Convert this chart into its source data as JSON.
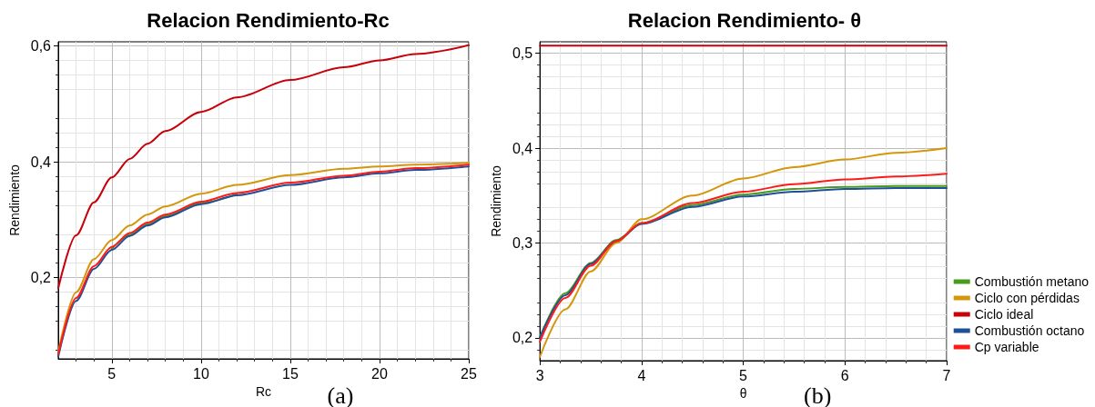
{
  "chart_data": [
    {
      "type": "line",
      "title": "Relacion Rendimiento-Rc",
      "xlabel": "Rc",
      "ylabel": "Rendimiento",
      "annotations": [
        "(a)"
      ],
      "x": [
        2,
        3,
        4,
        5,
        6,
        7,
        8,
        10,
        12,
        15,
        18,
        20,
        22,
        25
      ],
      "series": [
        {
          "color": "#c8000a",
          "values": [
            0.182,
            0.273,
            0.33,
            0.373,
            0.405,
            0.431,
            0.453,
            0.486,
            0.511,
            0.541,
            0.563,
            0.575,
            0.586,
            0.601
          ]
        },
        {
          "color": "#d4960a",
          "values": [
            0.072,
            0.175,
            0.232,
            0.265,
            0.29,
            0.309,
            0.323,
            0.345,
            0.36,
            0.377,
            0.388,
            0.392,
            0.395,
            0.398
          ]
        },
        {
          "color": "#4a9a1e",
          "values": [
            null,
            null,
            null,
            0.25,
            0.274,
            0.292,
            0.306,
            0.329,
            0.344,
            null,
            null,
            null,
            null,
            null
          ]
        },
        {
          "color": "#1f4f96",
          "values": [
            0.064,
            0.16,
            0.215,
            0.248,
            0.272,
            0.29,
            0.304,
            0.327,
            0.342,
            0.36,
            0.373,
            0.38,
            0.386,
            0.392
          ]
        },
        {
          "color": "#ff1a1a",
          "values": [
            0.068,
            0.165,
            0.22,
            0.253,
            0.277,
            0.295,
            0.309,
            0.331,
            0.346,
            0.364,
            0.376,
            0.383,
            0.389,
            0.395
          ]
        }
      ],
      "xlim": [
        2,
        25
      ],
      "xticks": [
        5,
        10,
        15,
        20,
        25
      ],
      "ylim": [
        0.06,
        0.607
      ],
      "yticks": [
        {
          "value": 0.2,
          "label": "0,2"
        },
        {
          "value": 0.4,
          "label": "0,4"
        },
        {
          "value": 0.6,
          "label": "0,6"
        }
      ],
      "grid": true,
      "legend": false,
      "marker": "none",
      "line_style": "solid"
    },
    {
      "type": "line",
      "title": "Relacion Rendimiento- θ",
      "xlabel": "θ",
      "ylabel": "Rendimiento",
      "annotations": [
        "(b)"
      ],
      "x": [
        3,
        3.25,
        3.5,
        3.75,
        4,
        4.5,
        5,
        5.5,
        6,
        6.5,
        7
      ],
      "series": [
        {
          "name": "Combustión metano",
          "color": "#4a9a1e",
          "values": [
            0.201,
            0.247,
            0.279,
            0.303,
            0.321,
            0.34,
            0.351,
            0.357,
            0.359,
            0.36,
            0.36
          ]
        },
        {
          "name": "Ciclo con pérdidas",
          "color": "#d4960a",
          "values": [
            0.18,
            0.23,
            0.27,
            0.3,
            0.325,
            0.35,
            0.368,
            0.38,
            0.388,
            0.395,
            0.4
          ]
        },
        {
          "name": "Ciclo ideal",
          "color": "#c8000a",
          "values": [
            0.508,
            0.508,
            0.508,
            0.508,
            0.508,
            0.508,
            0.508,
            0.508,
            0.508,
            0.508,
            0.508
          ]
        },
        {
          "name": "Combustión octano",
          "color": "#1f4f96",
          "values": [
            0.2,
            0.245,
            0.278,
            0.302,
            0.32,
            0.338,
            0.349,
            0.354,
            0.357,
            0.358,
            0.358
          ]
        },
        {
          "name": "Cp variable",
          "color": "#ff1a1a",
          "values": [
            0.196,
            0.242,
            0.276,
            0.302,
            0.321,
            0.342,
            0.354,
            0.362,
            0.367,
            0.37,
            0.373
          ]
        }
      ],
      "xlim": [
        3,
        7
      ],
      "xticks": [
        3,
        4,
        5,
        6,
        7
      ],
      "ylim": [
        0.176,
        0.512
      ],
      "yticks": [
        {
          "value": 0.2,
          "label": "0,2"
        },
        {
          "value": 0.3,
          "label": "0,3"
        },
        {
          "value": 0.4,
          "label": "0,4"
        },
        {
          "value": 0.5,
          "label": "0,5"
        }
      ],
      "grid": true,
      "legend": "bottom right",
      "marker": "none",
      "line_style": "solid"
    }
  ]
}
